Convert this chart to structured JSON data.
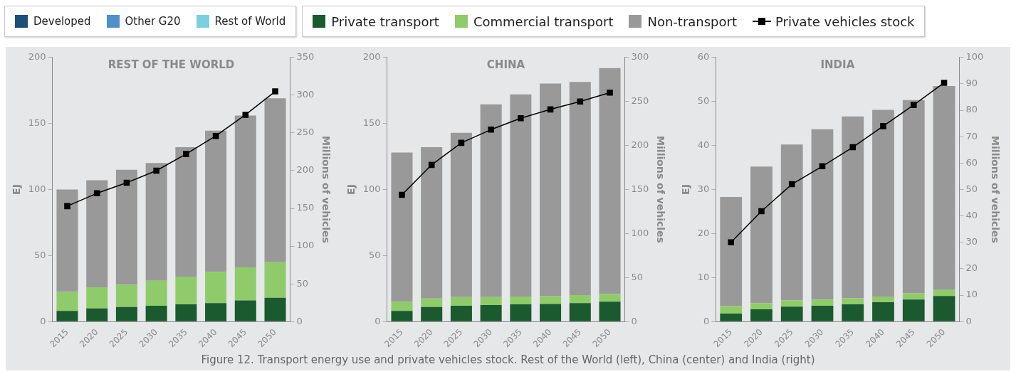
{
  "chart_data": [
    {
      "type": "bar",
      "title": "REST OF THE WORLD",
      "ylabel": "EJ",
      "y2label": "Millions of vehicles",
      "categories": [
        "2015",
        "2020",
        "2025",
        "2030",
        "2035",
        "2040",
        "2045",
        "2050"
      ],
      "stacked": true,
      "legend": "top",
      "grid": false,
      "ylim": [
        0,
        200
      ],
      "yticks": [
        0,
        50,
        100,
        150,
        200
      ],
      "y2lim": [
        0,
        350
      ],
      "y2ticks": [
        0,
        50,
        100,
        150,
        200,
        250,
        300,
        350
      ],
      "annotations": [
        "Figure 12. Transport energy use and private vehicles stock. Rest of the World (left), China (center) and India (right)"
      ],
      "series": [
        {
          "name": "Developed",
          "color": "#1f4e79",
          "values": [
            null,
            null,
            null,
            null,
            null,
            null,
            null,
            null
          ]
        },
        {
          "name": "Other G20",
          "color": "#4f90c8",
          "values": [
            null,
            null,
            null,
            null,
            null,
            null,
            null,
            null
          ]
        },
        {
          "name": "Rest of World",
          "color": "#7ccfe0",
          "values": [
            null,
            null,
            null,
            null,
            null,
            null,
            null,
            null
          ]
        },
        {
          "name": "Private transport",
          "color": "#1a5a2e",
          "values": [
            8,
            10,
            11,
            12,
            13,
            14,
            16,
            18
          ]
        },
        {
          "name": "Commercial transport",
          "color": "#8fcb6b",
          "values": [
            14.5,
            16,
            17,
            19,
            21,
            23.5,
            25,
            27
          ]
        },
        {
          "name": "Non-transport",
          "color": "#999999",
          "values": [
            77.5,
            81,
            87,
            89,
            98,
            107,
            115,
            124
          ]
        },
        {
          "name": "Private vehicles stock",
          "type": "line",
          "axis": "y2",
          "marker": "square",
          "color": "#000000",
          "values": [
            153,
            170,
            184,
            200,
            222,
            246,
            274,
            305
          ]
        }
      ]
    },
    {
      "type": "bar",
      "title": "CHINA",
      "ylabel": "EJ",
      "y2label": "Millions of vehicles",
      "categories": [
        "2015",
        "2020",
        "2025",
        "2030",
        "2035",
        "2040",
        "2045",
        "2050"
      ],
      "stacked": true,
      "grid": false,
      "ylim": [
        0,
        200
      ],
      "yticks": [
        0,
        50,
        100,
        150,
        200
      ],
      "y2lim": [
        0,
        300
      ],
      "y2ticks": [
        0,
        50,
        100,
        150,
        200,
        250,
        300
      ],
      "series": [
        {
          "color": "#1a5a2e",
          "values": [
            8,
            11,
            12,
            12.5,
            13,
            13.3,
            14,
            15
          ]
        },
        {
          "color": "#8fcb6b",
          "values": [
            7,
            6.5,
            6.5,
            6,
            6,
            6,
            6,
            6
          ]
        },
        {
          "color": "#999999",
          "values": [
            113,
            114.5,
            124.5,
            146,
            153,
            161,
            161.5,
            171
          ]
        },
        {
          "type": "line",
          "axis": "y2",
          "marker": "square",
          "color": "#000000",
          "values": [
            144,
            178,
            203,
            218,
            231,
            241,
            250,
            260
          ]
        }
      ]
    },
    {
      "type": "bar",
      "title": "INDIA",
      "ylabel": "EJ",
      "y2label": "Millions of vehicles",
      "categories": [
        "2015",
        "2020",
        "2025",
        "2030",
        "2035",
        "2040",
        "2045",
        "2050"
      ],
      "stacked": true,
      "grid": false,
      "ylim": [
        0,
        60
      ],
      "yticks": [
        0,
        10,
        20,
        30,
        40,
        50,
        60
      ],
      "y2lim": [
        0,
        100
      ],
      "y2ticks": [
        0,
        10,
        20,
        30,
        40,
        50,
        60,
        70,
        80,
        90,
        100
      ],
      "series": [
        {
          "color": "#1a5a2e",
          "values": [
            1.8,
            2.8,
            3.4,
            3.6,
            3.9,
            4.4,
            5,
            5.8
          ]
        },
        {
          "color": "#8fcb6b",
          "values": [
            1.7,
            1.4,
            1.4,
            1.4,
            1.4,
            1.3,
            1.4,
            1.4
          ]
        },
        {
          "color": "#999999",
          "values": [
            24.8,
            31,
            35.4,
            38.7,
            41.3,
            42.4,
            43.9,
            46.3
          ]
        },
        {
          "type": "line",
          "axis": "y2",
          "marker": "square",
          "color": "#000000",
          "values": [
            30,
            41.8,
            52,
            58.8,
            66,
            74,
            82,
            90.4
          ]
        }
      ]
    }
  ]
}
